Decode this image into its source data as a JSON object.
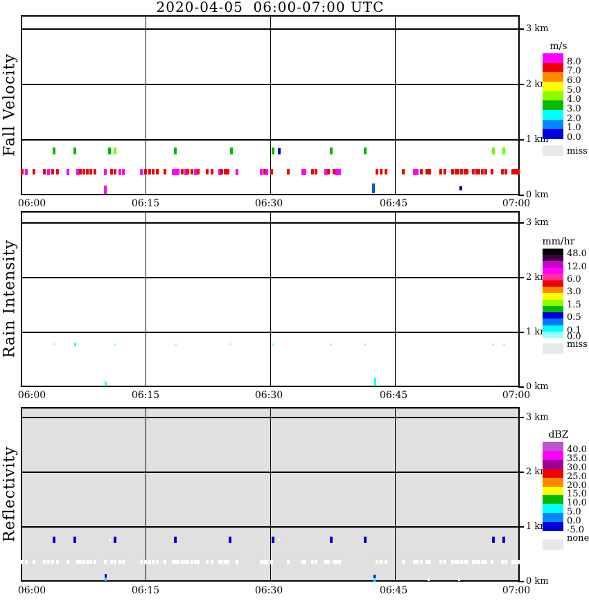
{
  "main_title": "2020-04-05  06:00-07:00 UTC",
  "palette": {
    "R": "#ee0000",
    "M": "#ff00ff",
    "G": "#00bb00",
    "C": "#66ff00",
    "B": "#0000dd",
    "DB": "#0055ff",
    "CY": "#00ffff",
    "PC": "#88ffff",
    "W": "#ffffff",
    "SB": "#33bbff"
  },
  "chart_data": [
    {
      "type": "scatter",
      "title": "Fall Velocity",
      "unit": "m/s",
      "x_ticks": [
        "06:00",
        "06:15",
        "06:30",
        "06:45",
        "07:00"
      ],
      "y_ticks": [
        "3 km",
        "2 km",
        "1 km",
        "0 km"
      ],
      "xlim": [
        "06:00",
        "07:00"
      ],
      "ylim_km": [
        0,
        3.25
      ],
      "grid": true,
      "background": "#ffffff",
      "legend": {
        "title": "m/s",
        "position": "right",
        "entries": [
          [
            "#ff00ff",
            "8.0"
          ],
          [
            "#ee0000",
            "7.0"
          ],
          [
            "#ff8800",
            "6.0"
          ],
          [
            "#ffff00",
            "5.0"
          ],
          [
            "#88ff00",
            "4.0"
          ],
          [
            "#00bb00",
            "3.0"
          ],
          [
            "#00ffff",
            "2.0"
          ],
          [
            "#0088ff",
            "1.0"
          ],
          [
            "#0000dd",
            "0.0"
          ]
        ],
        "footer": [
          "#e8e8e8",
          "miss"
        ]
      },
      "points": [
        [
          4.0,
          0.8,
          "G"
        ],
        [
          6.5,
          0.8,
          "G"
        ],
        [
          10.7,
          0.8,
          "G"
        ],
        [
          11.3,
          0.8,
          "C"
        ],
        [
          18.6,
          0.8,
          "G"
        ],
        [
          25.3,
          0.8,
          "G"
        ],
        [
          30.3,
          0.8,
          "G"
        ],
        [
          31.1,
          0.8,
          "B"
        ],
        [
          37.3,
          0.8,
          "G"
        ],
        [
          41.4,
          0.8,
          "G"
        ],
        [
          56.8,
          0.8,
          "C"
        ],
        [
          58.1,
          0.8,
          "C"
        ],
        [
          0.2,
          0.42,
          "R"
        ],
        [
          0.7,
          0.42,
          "M"
        ],
        [
          1.6,
          0.42,
          "R"
        ],
        [
          2.8,
          0.42,
          "R"
        ],
        [
          3.3,
          0.42,
          "M"
        ],
        [
          3.8,
          0.42,
          "R"
        ],
        [
          4.4,
          0.42,
          "R"
        ],
        [
          5.7,
          0.42,
          "M"
        ],
        [
          6.8,
          0.42,
          "M"
        ],
        [
          7.2,
          0.42,
          "R"
        ],
        [
          7.6,
          0.42,
          "R"
        ],
        [
          8.0,
          0.42,
          "R"
        ],
        [
          8.4,
          0.42,
          "R"
        ],
        [
          8.9,
          0.42,
          "R"
        ],
        [
          10.2,
          0.42,
          "M"
        ],
        [
          10.9,
          0.42,
          "R"
        ],
        [
          11.3,
          0.42,
          "R"
        ],
        [
          11.9,
          0.42,
          "M"
        ],
        [
          12.3,
          0.42,
          "M"
        ],
        [
          14.5,
          0.42,
          "M"
        ],
        [
          15.0,
          0.42,
          "R"
        ],
        [
          15.5,
          0.42,
          "R"
        ],
        [
          15.9,
          0.42,
          "R"
        ],
        [
          16.4,
          0.42,
          "R"
        ],
        [
          17.3,
          0.42,
          "R"
        ],
        [
          18.3,
          0.42,
          "M"
        ],
        [
          18.6,
          0.42,
          "M"
        ],
        [
          18.9,
          0.42,
          "M"
        ],
        [
          19.4,
          0.42,
          "R"
        ],
        [
          19.8,
          0.42,
          "M"
        ],
        [
          20.1,
          0.42,
          "R"
        ],
        [
          20.6,
          0.42,
          "R"
        ],
        [
          21.0,
          0.42,
          "M"
        ],
        [
          21.3,
          0.42,
          "R"
        ],
        [
          22.4,
          0.42,
          "R"
        ],
        [
          23.0,
          0.42,
          "R"
        ],
        [
          23.9,
          0.42,
          "M"
        ],
        [
          24.2,
          0.42,
          "R"
        ],
        [
          24.6,
          0.42,
          "R"
        ],
        [
          24.9,
          0.42,
          "R"
        ],
        [
          26.0,
          0.42,
          "M"
        ],
        [
          28.9,
          0.42,
          "M"
        ],
        [
          29.3,
          0.42,
          "R"
        ],
        [
          29.6,
          0.42,
          "M"
        ],
        [
          30.2,
          0.42,
          "R"
        ],
        [
          32.2,
          0.42,
          "R"
        ],
        [
          33.9,
          0.42,
          "M"
        ],
        [
          34.2,
          0.42,
          "M"
        ],
        [
          35.1,
          0.42,
          "R"
        ],
        [
          35.5,
          0.42,
          "R"
        ],
        [
          36.7,
          0.42,
          "M"
        ],
        [
          37.0,
          0.42,
          "R"
        ],
        [
          37.7,
          0.42,
          "R"
        ],
        [
          38.0,
          0.42,
          "M"
        ],
        [
          38.3,
          0.42,
          "M"
        ],
        [
          42.8,
          0.42,
          "R"
        ],
        [
          43.3,
          0.42,
          "R"
        ],
        [
          43.9,
          0.42,
          "R"
        ],
        [
          46.0,
          0.42,
          "R"
        ],
        [
          47.3,
          0.42,
          "M"
        ],
        [
          47.7,
          0.42,
          "M"
        ],
        [
          48.2,
          0.42,
          "R"
        ],
        [
          48.8,
          0.42,
          "R"
        ],
        [
          49.2,
          0.42,
          "R"
        ],
        [
          50.5,
          0.42,
          "R"
        ],
        [
          51.0,
          0.42,
          "R"
        ],
        [
          51.9,
          0.42,
          "R"
        ],
        [
          52.3,
          0.42,
          "R"
        ],
        [
          52.6,
          0.42,
          "R"
        ],
        [
          53.0,
          0.42,
          "R"
        ],
        [
          53.4,
          0.42,
          "R"
        ],
        [
          53.7,
          0.42,
          "R"
        ],
        [
          54.4,
          0.42,
          "R"
        ],
        [
          54.8,
          0.42,
          "R"
        ],
        [
          55.1,
          0.42,
          "R"
        ],
        [
          55.5,
          0.42,
          "R"
        ],
        [
          55.9,
          0.42,
          "R"
        ],
        [
          56.7,
          0.42,
          "R"
        ],
        [
          57.9,
          0.42,
          "R"
        ],
        [
          58.3,
          0.42,
          "R"
        ],
        [
          59.2,
          0.42,
          "R"
        ],
        [
          59.5,
          0.42,
          "R"
        ],
        [
          59.8,
          0.42,
          "R"
        ],
        [
          10.2,
          0.1,
          "M",
          4,
          12
        ],
        [
          42.4,
          0.13,
          "DB",
          4,
          14
        ],
        [
          52.9,
          0.13,
          "B",
          4,
          6
        ]
      ]
    },
    {
      "type": "scatter",
      "title": "Rain Intensity",
      "unit": "mm/hr",
      "x_ticks": [
        "06:00",
        "06:15",
        "06:30",
        "06:45",
        "07:00"
      ],
      "y_ticks": [
        "3 km",
        "2 km",
        "1 km",
        "0 km"
      ],
      "xlim": [
        "06:00",
        "07:00"
      ],
      "ylim_km": [
        0,
        3.25
      ],
      "grid": true,
      "background": "#ffffff",
      "legend": {
        "title": "mm/hr",
        "position": "right",
        "entries": [
          [
            "#000000",
            "48.0"
          ],
          [
            "#3c0040",
            null
          ],
          [
            "#cc00cc",
            "12.0"
          ],
          [
            "#ff00ff",
            null
          ],
          [
            "#ff3399",
            "6.0"
          ],
          [
            "#ee0000",
            null
          ],
          [
            "#ff8800",
            "3.0"
          ],
          [
            "#ffff00",
            null
          ],
          [
            "#88ff00",
            "1.5"
          ],
          [
            "#00bb00",
            null
          ],
          [
            "#0000dd",
            "0.5"
          ],
          [
            "#0077ff",
            null
          ],
          [
            "#00ffff",
            "0.1"
          ],
          [
            "#99ffff",
            "0.0"
          ]
        ],
        "footer": [
          "#e8e8e8",
          "miss"
        ]
      },
      "points": [
        [
          4.0,
          0.78,
          "PC"
        ],
        [
          6.5,
          0.78,
          "CY",
          3,
          5
        ],
        [
          11.3,
          0.78,
          "PC"
        ],
        [
          18.6,
          0.78,
          "PC"
        ],
        [
          25.2,
          0.78,
          "PC"
        ],
        [
          30.4,
          0.78,
          "PC"
        ],
        [
          37.3,
          0.78,
          "PC"
        ],
        [
          41.4,
          0.78,
          "PC"
        ],
        [
          56.8,
          0.78,
          "PC"
        ],
        [
          58.1,
          0.78,
          "PC"
        ],
        [
          10.2,
          0.06,
          "CY",
          3,
          7
        ],
        [
          42.6,
          0.09,
          "CY",
          3,
          12
        ]
      ]
    },
    {
      "type": "scatter",
      "title": "Reflectivity",
      "unit": "dBZ",
      "x_ticks": [
        "06:00",
        "06:15",
        "06:30",
        "06:45",
        "07:00"
      ],
      "y_ticks": [
        "3 km",
        "2 km",
        "1 km",
        "0 km"
      ],
      "xlim": [
        "06:00",
        "07:00"
      ],
      "ylim_km": [
        0,
        3.25
      ],
      "grid": true,
      "background": "#e0e0e0",
      "legend": {
        "title": "dBZ",
        "position": "right",
        "entries": [
          [
            "#bb55cc",
            "40.0"
          ],
          [
            "#ff00ff",
            "35.0"
          ],
          [
            "#990099",
            "30.0"
          ],
          [
            "#ee0000",
            "25.0"
          ],
          [
            "#ff8800",
            "20.0"
          ],
          [
            "#ffff00",
            "15.0"
          ],
          [
            "#00bb00",
            "10.0"
          ],
          [
            "#00ffff",
            "5.0"
          ],
          [
            "#0088ff",
            "0.0"
          ],
          [
            "#0000dd",
            "-5.0"
          ]
        ],
        "footer": [
          "#e8e8e8",
          "none"
        ]
      },
      "points": [
        [
          4.0,
          0.76,
          "B"
        ],
        [
          6.5,
          0.76,
          "B"
        ],
        [
          10.7,
          0.76,
          "W",
          3,
          3
        ],
        [
          11.3,
          0.76,
          "B"
        ],
        [
          18.6,
          0.76,
          "B"
        ],
        [
          25.2,
          0.76,
          "B"
        ],
        [
          30.3,
          0.76,
          "B"
        ],
        [
          31.0,
          0.76,
          "W",
          3,
          3
        ],
        [
          37.3,
          0.76,
          "B"
        ],
        [
          41.4,
          0.76,
          "B"
        ],
        [
          56.8,
          0.76,
          "B"
        ],
        [
          58.1,
          0.76,
          "B"
        ],
        [
          0.2,
          0.36,
          "W"
        ],
        [
          0.7,
          0.36,
          "W"
        ],
        [
          1.6,
          0.36,
          "W"
        ],
        [
          2.8,
          0.36,
          "W"
        ],
        [
          3.3,
          0.36,
          "W"
        ],
        [
          3.8,
          0.36,
          "W"
        ],
        [
          4.4,
          0.36,
          "W"
        ],
        [
          5.7,
          0.36,
          "W"
        ],
        [
          6.8,
          0.36,
          "W"
        ],
        [
          7.2,
          0.36,
          "W"
        ],
        [
          7.6,
          0.36,
          "W"
        ],
        [
          8.0,
          0.36,
          "W"
        ],
        [
          8.4,
          0.36,
          "W"
        ],
        [
          8.9,
          0.36,
          "W"
        ],
        [
          10.2,
          0.36,
          "W"
        ],
        [
          10.9,
          0.36,
          "W"
        ],
        [
          11.3,
          0.36,
          "W"
        ],
        [
          11.9,
          0.36,
          "W"
        ],
        [
          12.3,
          0.36,
          "W"
        ],
        [
          14.5,
          0.36,
          "W"
        ],
        [
          15.0,
          0.36,
          "W"
        ],
        [
          15.5,
          0.36,
          "W"
        ],
        [
          15.9,
          0.36,
          "W"
        ],
        [
          16.4,
          0.36,
          "W"
        ],
        [
          17.3,
          0.36,
          "W"
        ],
        [
          18.3,
          0.36,
          "W"
        ],
        [
          18.6,
          0.36,
          "W"
        ],
        [
          18.9,
          0.36,
          "W"
        ],
        [
          19.4,
          0.36,
          "W"
        ],
        [
          19.8,
          0.36,
          "W"
        ],
        [
          20.1,
          0.36,
          "W"
        ],
        [
          20.6,
          0.36,
          "W"
        ],
        [
          21.0,
          0.36,
          "W"
        ],
        [
          21.3,
          0.36,
          "W"
        ],
        [
          22.4,
          0.36,
          "W"
        ],
        [
          23.0,
          0.36,
          "W"
        ],
        [
          23.9,
          0.36,
          "W"
        ],
        [
          24.2,
          0.36,
          "W"
        ],
        [
          24.6,
          0.36,
          "W"
        ],
        [
          24.9,
          0.36,
          "W"
        ],
        [
          26.0,
          0.36,
          "W"
        ],
        [
          28.9,
          0.36,
          "W"
        ],
        [
          29.3,
          0.36,
          "W"
        ],
        [
          29.6,
          0.36,
          "W"
        ],
        [
          30.2,
          0.36,
          "W"
        ],
        [
          32.2,
          0.36,
          "W"
        ],
        [
          33.9,
          0.36,
          "W"
        ],
        [
          34.2,
          0.36,
          "W"
        ],
        [
          35.1,
          0.36,
          "W"
        ],
        [
          35.5,
          0.36,
          "W"
        ],
        [
          36.7,
          0.36,
          "W"
        ],
        [
          37.0,
          0.36,
          "W"
        ],
        [
          37.7,
          0.36,
          "W"
        ],
        [
          38.0,
          0.36,
          "W"
        ],
        [
          38.3,
          0.36,
          "W"
        ],
        [
          42.8,
          0.36,
          "W"
        ],
        [
          43.3,
          0.36,
          "W"
        ],
        [
          43.9,
          0.36,
          "W"
        ],
        [
          46.0,
          0.36,
          "W"
        ],
        [
          47.3,
          0.36,
          "W"
        ],
        [
          47.7,
          0.36,
          "W"
        ],
        [
          48.2,
          0.36,
          "W"
        ],
        [
          48.8,
          0.36,
          "W"
        ],
        [
          49.2,
          0.36,
          "W"
        ],
        [
          50.5,
          0.36,
          "W"
        ],
        [
          51.0,
          0.36,
          "W"
        ],
        [
          51.9,
          0.36,
          "W"
        ],
        [
          52.3,
          0.36,
          "W"
        ],
        [
          52.6,
          0.36,
          "W"
        ],
        [
          53.0,
          0.36,
          "W"
        ],
        [
          53.4,
          0.36,
          "W"
        ],
        [
          53.7,
          0.36,
          "W"
        ],
        [
          54.4,
          0.36,
          "W"
        ],
        [
          54.8,
          0.36,
          "W"
        ],
        [
          55.1,
          0.36,
          "W"
        ],
        [
          55.5,
          0.36,
          "W"
        ],
        [
          55.9,
          0.36,
          "W"
        ],
        [
          56.7,
          0.36,
          "W"
        ],
        [
          57.9,
          0.36,
          "W"
        ],
        [
          58.3,
          0.36,
          "W"
        ],
        [
          59.2,
          0.36,
          "W"
        ],
        [
          59.5,
          0.36,
          "W"
        ],
        [
          59.8,
          0.36,
          "W"
        ],
        [
          10.2,
          0.11,
          "B",
          3,
          5
        ],
        [
          10.2,
          0.045,
          "SB",
          3,
          5
        ],
        [
          42.5,
          0.1,
          "B",
          3,
          5
        ],
        [
          42.5,
          0.03,
          "CY",
          3,
          6
        ],
        [
          49.0,
          0.05,
          "W",
          3,
          5
        ],
        [
          52.7,
          0.05,
          "W",
          3,
          5
        ]
      ]
    }
  ]
}
